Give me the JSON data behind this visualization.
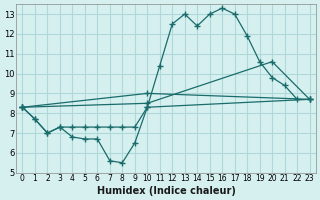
{
  "xlabel": "Humidex (Indice chaleur)",
  "ylabel": "",
  "background_color": "#d6f0f0",
  "grid_color": "#b0d8d8",
  "line_color": "#1a6b6b",
  "xlim": [
    -0.5,
    23.5
  ],
  "ylim": [
    5,
    13.5
  ],
  "yticks": [
    5,
    6,
    7,
    8,
    9,
    10,
    11,
    12,
    13
  ],
  "xticks": [
    0,
    1,
    2,
    3,
    4,
    5,
    6,
    7,
    8,
    9,
    10,
    11,
    12,
    13,
    14,
    15,
    16,
    17,
    18,
    19,
    20,
    21,
    22,
    23
  ],
  "series": [
    {
      "x": [
        0,
        1,
        2,
        3,
        4,
        5,
        6,
        7,
        8,
        9,
        10,
        11,
        12,
        13,
        14,
        15,
        16,
        17,
        18,
        19,
        20,
        21,
        22
      ],
      "y": [
        8.3,
        7.7,
        7.0,
        7.3,
        6.8,
        6.7,
        6.7,
        5.6,
        5.5,
        6.5,
        8.3,
        10.4,
        12.5,
        13.0,
        12.4,
        13.0,
        13.3,
        13.0,
        11.9,
        10.6,
        9.8,
        9.4,
        8.7
      ]
    },
    {
      "x": [
        0,
        1,
        2,
        3,
        4,
        5,
        6,
        7,
        8,
        9,
        10,
        23
      ],
      "y": [
        8.3,
        7.7,
        7.0,
        7.3,
        7.3,
        7.3,
        7.3,
        7.3,
        7.3,
        7.3,
        8.3,
        8.7
      ]
    },
    {
      "x": [
        0,
        10,
        23
      ],
      "y": [
        8.3,
        9.0,
        8.7
      ]
    },
    {
      "x": [
        0,
        10,
        20,
        23
      ],
      "y": [
        8.3,
        8.5,
        10.6,
        8.7
      ]
    }
  ]
}
